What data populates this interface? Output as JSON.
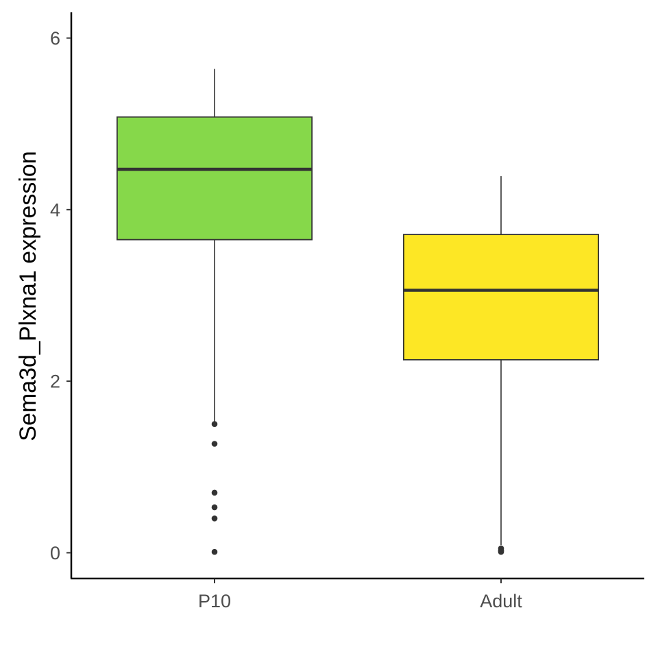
{
  "chart_data": {
    "type": "boxplot",
    "title": "",
    "xlabel": "",
    "ylabel": "Sema3d_Plxna1 expression",
    "ylim": [
      -0.3,
      6.3
    ],
    "yticks": [
      0,
      2,
      4,
      6
    ],
    "grid": false,
    "legend": "none",
    "categories": [
      "P10",
      "Adult"
    ],
    "boxes": [
      {
        "category": "P10",
        "color": "#86d84a",
        "whisker_low": 1.5,
        "q1": 3.65,
        "median": 4.47,
        "q3": 5.08,
        "whisker_high": 5.64,
        "outliers": [
          1.5,
          1.27,
          0.7,
          0.53,
          0.4,
          0.01
        ]
      },
      {
        "category": "Adult",
        "color": "#fde725",
        "whisker_low": 0.09,
        "q1": 2.25,
        "median": 3.06,
        "q3": 3.71,
        "whisker_high": 4.39,
        "outliers": [
          0.05,
          0.03,
          0.02,
          0.01
        ]
      }
    ]
  }
}
